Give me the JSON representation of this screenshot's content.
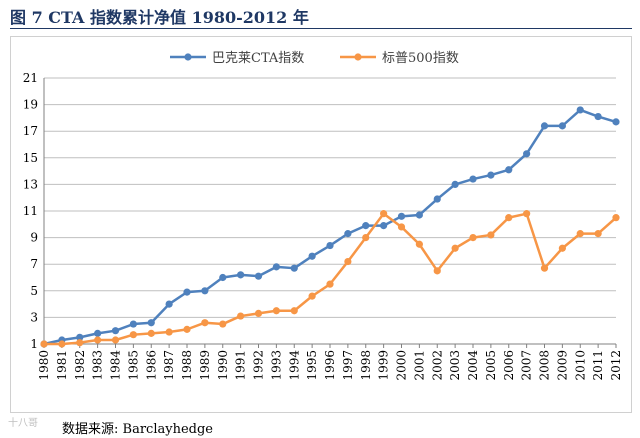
{
  "figure_title": "图 7 CTA 指数累计净值 1980-2012 年",
  "source_label": "数据来源:",
  "source_value": "Barclayhedge",
  "watermark": "十八哥",
  "chart_data": {
    "type": "line",
    "title": "",
    "xlabel": "",
    "ylabel": "",
    "ylim": [
      1,
      21
    ],
    "yticks": [
      1,
      3,
      5,
      7,
      9,
      11,
      13,
      15,
      17,
      19,
      21
    ],
    "grid": true,
    "legend_position": "top-center",
    "categories": [
      "1980",
      "1981",
      "1982",
      "1983",
      "1984",
      "1985",
      "1986",
      "1987",
      "1988",
      "1989",
      "1990",
      "1991",
      "1992",
      "1993",
      "1994",
      "1995",
      "1996",
      "1997",
      "1998",
      "1999",
      "2000",
      "2001",
      "2002",
      "2003",
      "2004",
      "2005",
      "2006",
      "2007",
      "2008",
      "2009",
      "2010",
      "2011",
      "2012"
    ],
    "series": [
      {
        "name": "巴克莱CTA指数",
        "color": "#4f81bd",
        "values": [
          1.0,
          1.3,
          1.5,
          1.8,
          2.0,
          2.5,
          2.6,
          4.0,
          4.9,
          5.0,
          6.0,
          6.2,
          6.1,
          6.8,
          6.7,
          7.6,
          8.4,
          9.3,
          9.9,
          9.9,
          10.6,
          10.7,
          11.9,
          13.0,
          13.4,
          13.7,
          14.1,
          15.3,
          17.4,
          17.4,
          18.6,
          18.1,
          17.7
        ]
      },
      {
        "name": "标普500指数",
        "color": "#f79646",
        "values": [
          1.0,
          1.0,
          1.1,
          1.3,
          1.3,
          1.7,
          1.8,
          1.9,
          2.1,
          2.6,
          2.5,
          3.1,
          3.3,
          3.5,
          3.5,
          4.6,
          5.5,
          7.2,
          9.0,
          10.8,
          9.8,
          8.5,
          6.5,
          8.2,
          9.0,
          9.2,
          10.5,
          10.8,
          6.7,
          8.2,
          9.3,
          9.3,
          10.5
        ]
      }
    ]
  }
}
